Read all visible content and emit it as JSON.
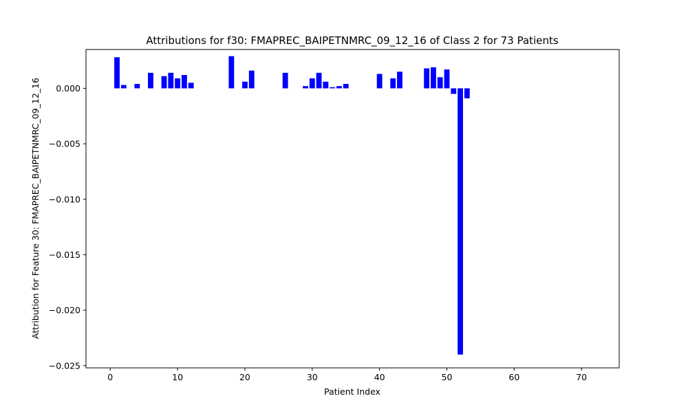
{
  "chart_data": {
    "type": "bar",
    "title": "Attributions for f30: FMAPREC_BAIPETNMRC_09_12_16 of Class 2 for 73 Patients",
    "xlabel": "Patient Index",
    "ylabel": "Attribution for Feature 30: FMAPREC_BAIPETNMRC_09_12_16",
    "xlim": [
      -3.6,
      75.6
    ],
    "ylim": [
      -0.0252,
      0.0035
    ],
    "xticks": [
      0,
      10,
      20,
      30,
      40,
      50,
      60,
      70
    ],
    "xtick_labels": [
      "0",
      "10",
      "20",
      "30",
      "40",
      "50",
      "60",
      "70"
    ],
    "yticks": [
      0.0,
      -0.005,
      -0.01,
      -0.015,
      -0.02,
      -0.025
    ],
    "ytick_labels": [
      "0.000",
      "−0.005",
      "−0.010",
      "−0.015",
      "−0.020",
      "−0.025"
    ],
    "bar_color": "#0000ff",
    "grid": false,
    "legend": false,
    "x": [
      0,
      1,
      2,
      3,
      4,
      5,
      6,
      7,
      8,
      9,
      10,
      11,
      12,
      13,
      14,
      15,
      16,
      17,
      18,
      19,
      20,
      21,
      22,
      23,
      24,
      25,
      26,
      27,
      28,
      29,
      30,
      31,
      32,
      33,
      34,
      35,
      36,
      37,
      38,
      39,
      40,
      41,
      42,
      43,
      44,
      45,
      46,
      47,
      48,
      49,
      50,
      51,
      52,
      53,
      54,
      55,
      56,
      57,
      58,
      59,
      60,
      61,
      62,
      63,
      64,
      65,
      66,
      67,
      68,
      69,
      70,
      71,
      72
    ],
    "values": [
      0,
      0.0028,
      0.0003,
      0,
      0.0004,
      0,
      0.0014,
      0,
      0.0011,
      0.0014,
      0.0009,
      0.0012,
      0.0005,
      0,
      0,
      0,
      0,
      0,
      0.0029,
      0,
      0.0006,
      0.0016,
      0,
      0,
      0,
      0,
      0.0014,
      0,
      0,
      0.0002,
      0.0009,
      0.0014,
      0.0006,
      0.0001,
      0.0002,
      0.0004,
      0,
      0,
      0,
      0,
      0.0013,
      0,
      0.0009,
      0.0015,
      0,
      0,
      0,
      0.0018,
      0.0019,
      0.001,
      0.0017,
      -0.0005,
      -0.024,
      -0.0009,
      0,
      0,
      0,
      0,
      0,
      0,
      0,
      0,
      0,
      0,
      0,
      0,
      0,
      0,
      0,
      0,
      0,
      0,
      0
    ]
  }
}
